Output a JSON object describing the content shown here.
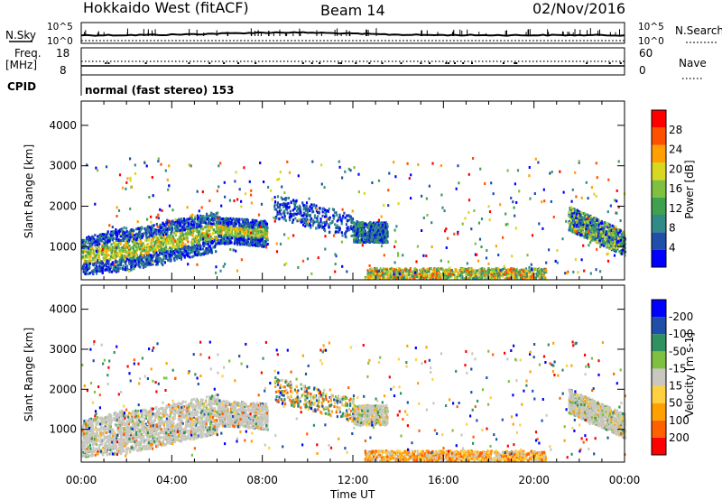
{
  "header": {
    "title": "Hokkaido West (fitACF)",
    "beam": "Beam 14",
    "date": "02/Nov/2016"
  },
  "noise_panel": {
    "left_label": "N.Sky",
    "right_label": "N.Search",
    "y_ticks": [
      "10^5",
      "10^0"
    ]
  },
  "freq_panel": {
    "left_label_line1": "Freq.",
    "left_label_line2": "[MHz]",
    "left_ticks": [
      "18",
      "8"
    ],
    "right_label": "Nave",
    "right_ticks": [
      "60",
      "0"
    ]
  },
  "cpid_panel": {
    "label": "CPID",
    "mode": "normal (fast stereo) 153"
  },
  "chart_data": [
    {
      "type": "heatmap",
      "parameter": "power",
      "ylabel": "Slant Range [km]",
      "xlabel": "Time UT",
      "xlim_hours": [
        0,
        24
      ],
      "x_ticks": [
        "00:00",
        "04:00",
        "08:00",
        "12:00",
        "16:00",
        "20:00",
        "00:00"
      ],
      "ylim": [
        180,
        4600
      ],
      "y_ticks": [
        1000,
        2000,
        3000,
        4000
      ],
      "colorbar": {
        "label": "Power [dB]",
        "range": [
          0,
          30
        ],
        "ticks": [
          "4",
          "8",
          "12",
          "16",
          "20",
          "24",
          "28"
        ]
      }
    },
    {
      "type": "heatmap",
      "parameter": "velocity",
      "ylabel": "Slant Range [km]",
      "xlabel": "Time UT",
      "xlim_hours": [
        0,
        24
      ],
      "x_ticks": [
        "00:00",
        "04:00",
        "08:00",
        "12:00",
        "16:00",
        "20:00",
        "00:00"
      ],
      "ylim": [
        180,
        4600
      ],
      "y_ticks": [
        1000,
        2000,
        3000,
        4000
      ],
      "colorbar": {
        "label": "Velocity [m s-1]",
        "range": [
          -250,
          250
        ],
        "ticks": [
          "200",
          "100",
          "50",
          "15",
          "-15",
          "-50",
          "-100",
          "-200"
        ]
      }
    }
  ],
  "colors": {
    "power_scale": [
      "#0000ff",
      "#1f4fa8",
      "#2f8a88",
      "#3fa050",
      "#80c040",
      "#d8d820",
      "#ffa000",
      "#ff5000",
      "#ff0000"
    ],
    "velocity_scale": [
      "#ff0000",
      "#ff6000",
      "#ffa000",
      "#ffd040",
      "#c8c8c0",
      "#80c040",
      "#2f9060",
      "#1f4fa8",
      "#0000ff"
    ]
  }
}
